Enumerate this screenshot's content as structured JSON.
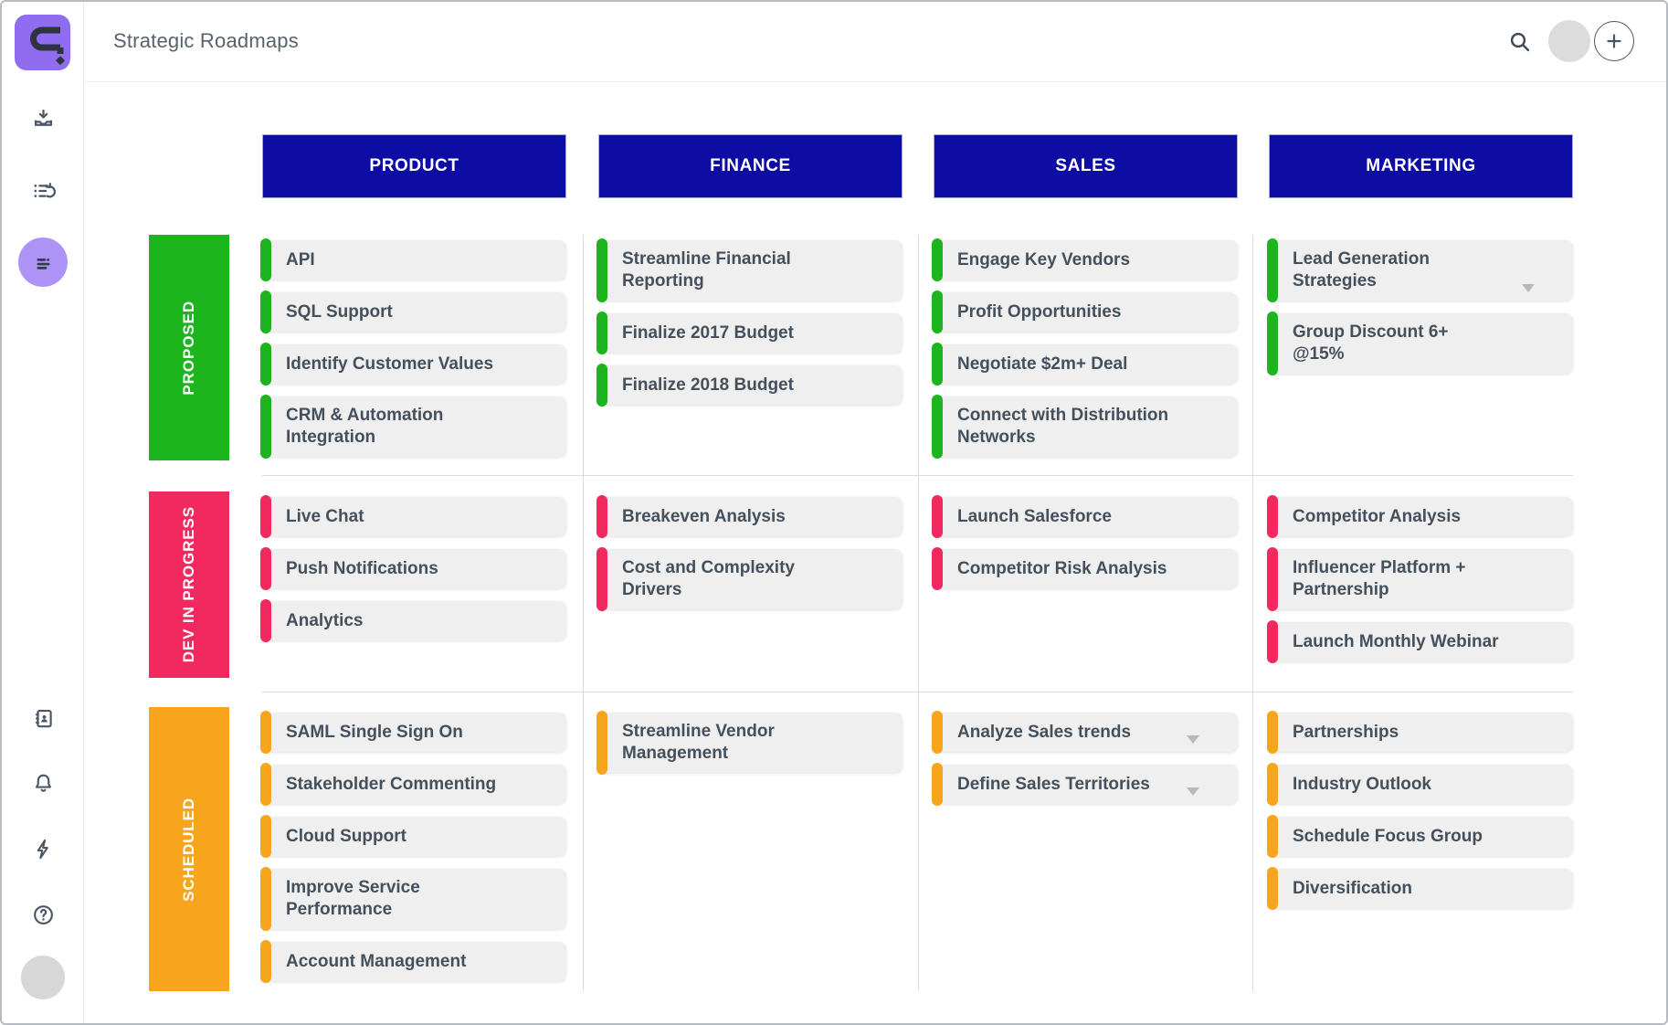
{
  "topbar": {
    "title": "Strategic Roadmaps",
    "icons": [
      "search-icon",
      "user-avatar",
      "add-button"
    ]
  },
  "sidebar": {
    "logo": "roadmunk-logo",
    "items": [
      {
        "icon": "inbox-download-icon",
        "active": false
      },
      {
        "icon": "recent-list-icon",
        "active": false
      },
      {
        "icon": "roadmap-items-icon",
        "active": true
      },
      {
        "icon": "contacts-book-icon",
        "active": false
      },
      {
        "icon": "bell-icon",
        "active": false
      },
      {
        "icon": "lightning-icon",
        "active": false
      },
      {
        "icon": "help-icon",
        "active": false
      },
      {
        "icon": "user-avatar",
        "active": false
      }
    ],
    "active_highlight_color": "#ad93f6",
    "logo_color": "#8f6cf0"
  },
  "board": {
    "header_color": "#0d0da4",
    "columns": [
      {
        "label": "PRODUCT"
      },
      {
        "label": "FINANCE"
      },
      {
        "label": "SALES"
      },
      {
        "label": "MARKETING"
      }
    ],
    "rows": [
      {
        "label": "PROPOSED",
        "color": "#1db51d",
        "cells": [
          [
            {
              "text": "API"
            },
            {
              "text": "SQL Support"
            },
            {
              "text": "Identify Customer Values"
            },
            {
              "text": "CRM & Automation\nIntegration"
            }
          ],
          [
            {
              "text": "Streamline Financial\nReporting"
            },
            {
              "text": "Finalize 2017 Budget"
            },
            {
              "text": "Finalize 2018 Budget"
            }
          ],
          [
            {
              "text": "Engage Key Vendors"
            },
            {
              "text": "Profit Opportunities"
            },
            {
              "text": "Negotiate $2m+ Deal"
            },
            {
              "text": "Connect with Distribution\nNetworks"
            }
          ],
          [
            {
              "text": "Lead Generation\nStrategies",
              "dropdown": true
            },
            {
              "text": "Group Discount 6+\n@15%"
            }
          ]
        ]
      },
      {
        "label": "DEV IN PROGRESS",
        "color": "#f2295e",
        "cells": [
          [
            {
              "text": "Live Chat"
            },
            {
              "text": "Push Notifications"
            },
            {
              "text": "Analytics"
            }
          ],
          [
            {
              "text": "Breakeven Analysis"
            },
            {
              "text": "Cost and Complexity\nDrivers"
            }
          ],
          [
            {
              "text": "Launch Salesforce"
            },
            {
              "text": "Competitor Risk Analysis"
            }
          ],
          [
            {
              "text": "Competitor Analysis"
            },
            {
              "text": "Influencer Platform +\nPartnership"
            },
            {
              "text": "Launch Monthly Webinar"
            }
          ]
        ]
      },
      {
        "label": "SCHEDULED",
        "color": "#f7a51d",
        "cells": [
          [
            {
              "text": "SAML Single Sign On"
            },
            {
              "text": "Stakeholder Commenting"
            },
            {
              "text": "Cloud Support"
            },
            {
              "text": "Improve Service\nPerformance"
            },
            {
              "text": "Account Management"
            }
          ],
          [
            {
              "text": "Streamline Vendor\nManagement"
            }
          ],
          [
            {
              "text": "Analyze Sales trends",
              "dropdown": true
            },
            {
              "text": "Define Sales Territories",
              "dropdown": true
            }
          ],
          [
            {
              "text": "Partnerships"
            },
            {
              "text": "Industry Outlook"
            },
            {
              "text": "Schedule Focus Group"
            },
            {
              "text": "Diversification"
            }
          ]
        ]
      }
    ]
  }
}
